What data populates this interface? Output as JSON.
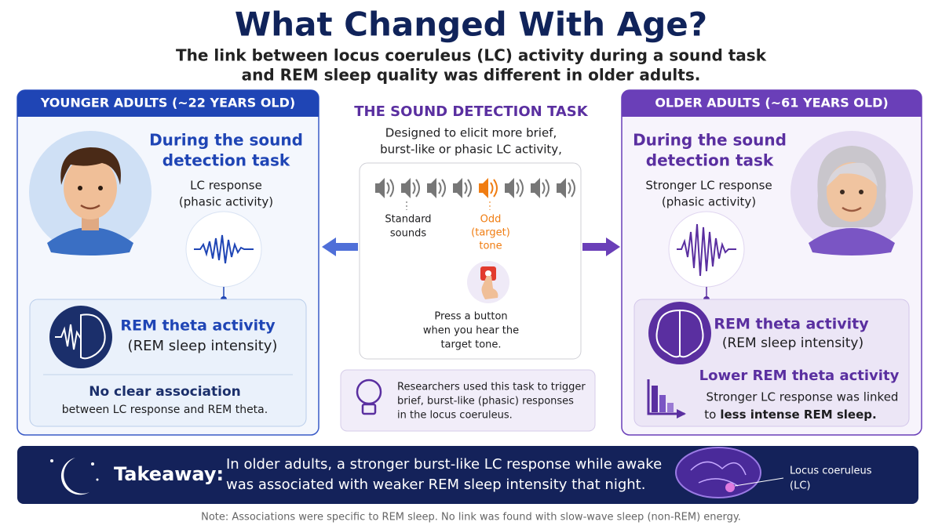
{
  "header": {
    "title": "What Changed With Age?",
    "subtitle": [
      "The link between locus coeruleus (LC) activity during a sound task",
      "and REM sleep quality was different in older adults."
    ]
  },
  "younger": {
    "label": "YOUNGER ADULTS (~22 YEARS OLD)",
    "task_heading": [
      "During the sound",
      "detection task"
    ],
    "response": [
      "LC response",
      "(phasic activity)"
    ],
    "rem_heading": "REM theta activity",
    "rem_sub": "(REM sleep intensity)",
    "finding_heading": "No clear association",
    "finding": "between LC response and REM theta."
  },
  "task": {
    "heading": "THE SOUND DETECTION TASK",
    "description": [
      "Designed to elicit more brief,",
      "burst-like or phasic LC activity,"
    ],
    "standard_label": [
      "Standard",
      "sounds"
    ],
    "odd_label": [
      "Odd",
      "(target)",
      "tone"
    ],
    "instruction": [
      "Press a button",
      "when you hear the",
      "target tone."
    ],
    "note": [
      "Researchers used this task to trigger",
      "brief, burst-like (phasic) responses",
      "in the locus coeruleus."
    ]
  },
  "older": {
    "label": "OLDER ADULTS (~61 YEARS OLD)",
    "task_heading": [
      "During the sound",
      "detection task"
    ],
    "response": [
      "Stronger LC response",
      "(phasic activity)"
    ],
    "rem_heading": "REM theta activity",
    "rem_sub": "(REM sleep intensity)",
    "finding_heading": "Lower REM theta activity",
    "finding": "Stronger LC response was linked",
    "finding_lead": "to",
    "finding_emphasis": "less intense REM sleep."
  },
  "takeaway": {
    "label": "Takeaway:",
    "text": [
      "In older adults, a stronger burst-like LC response while awake",
      "was associated with weaker REM sleep intensity that night."
    ],
    "brain_label": [
      "Locus coeruleus",
      "(LC)"
    ]
  },
  "footnote": "Note: Associations were specific to REM sleep. No link was found with slow-wave sleep (non-REM) energy."
}
